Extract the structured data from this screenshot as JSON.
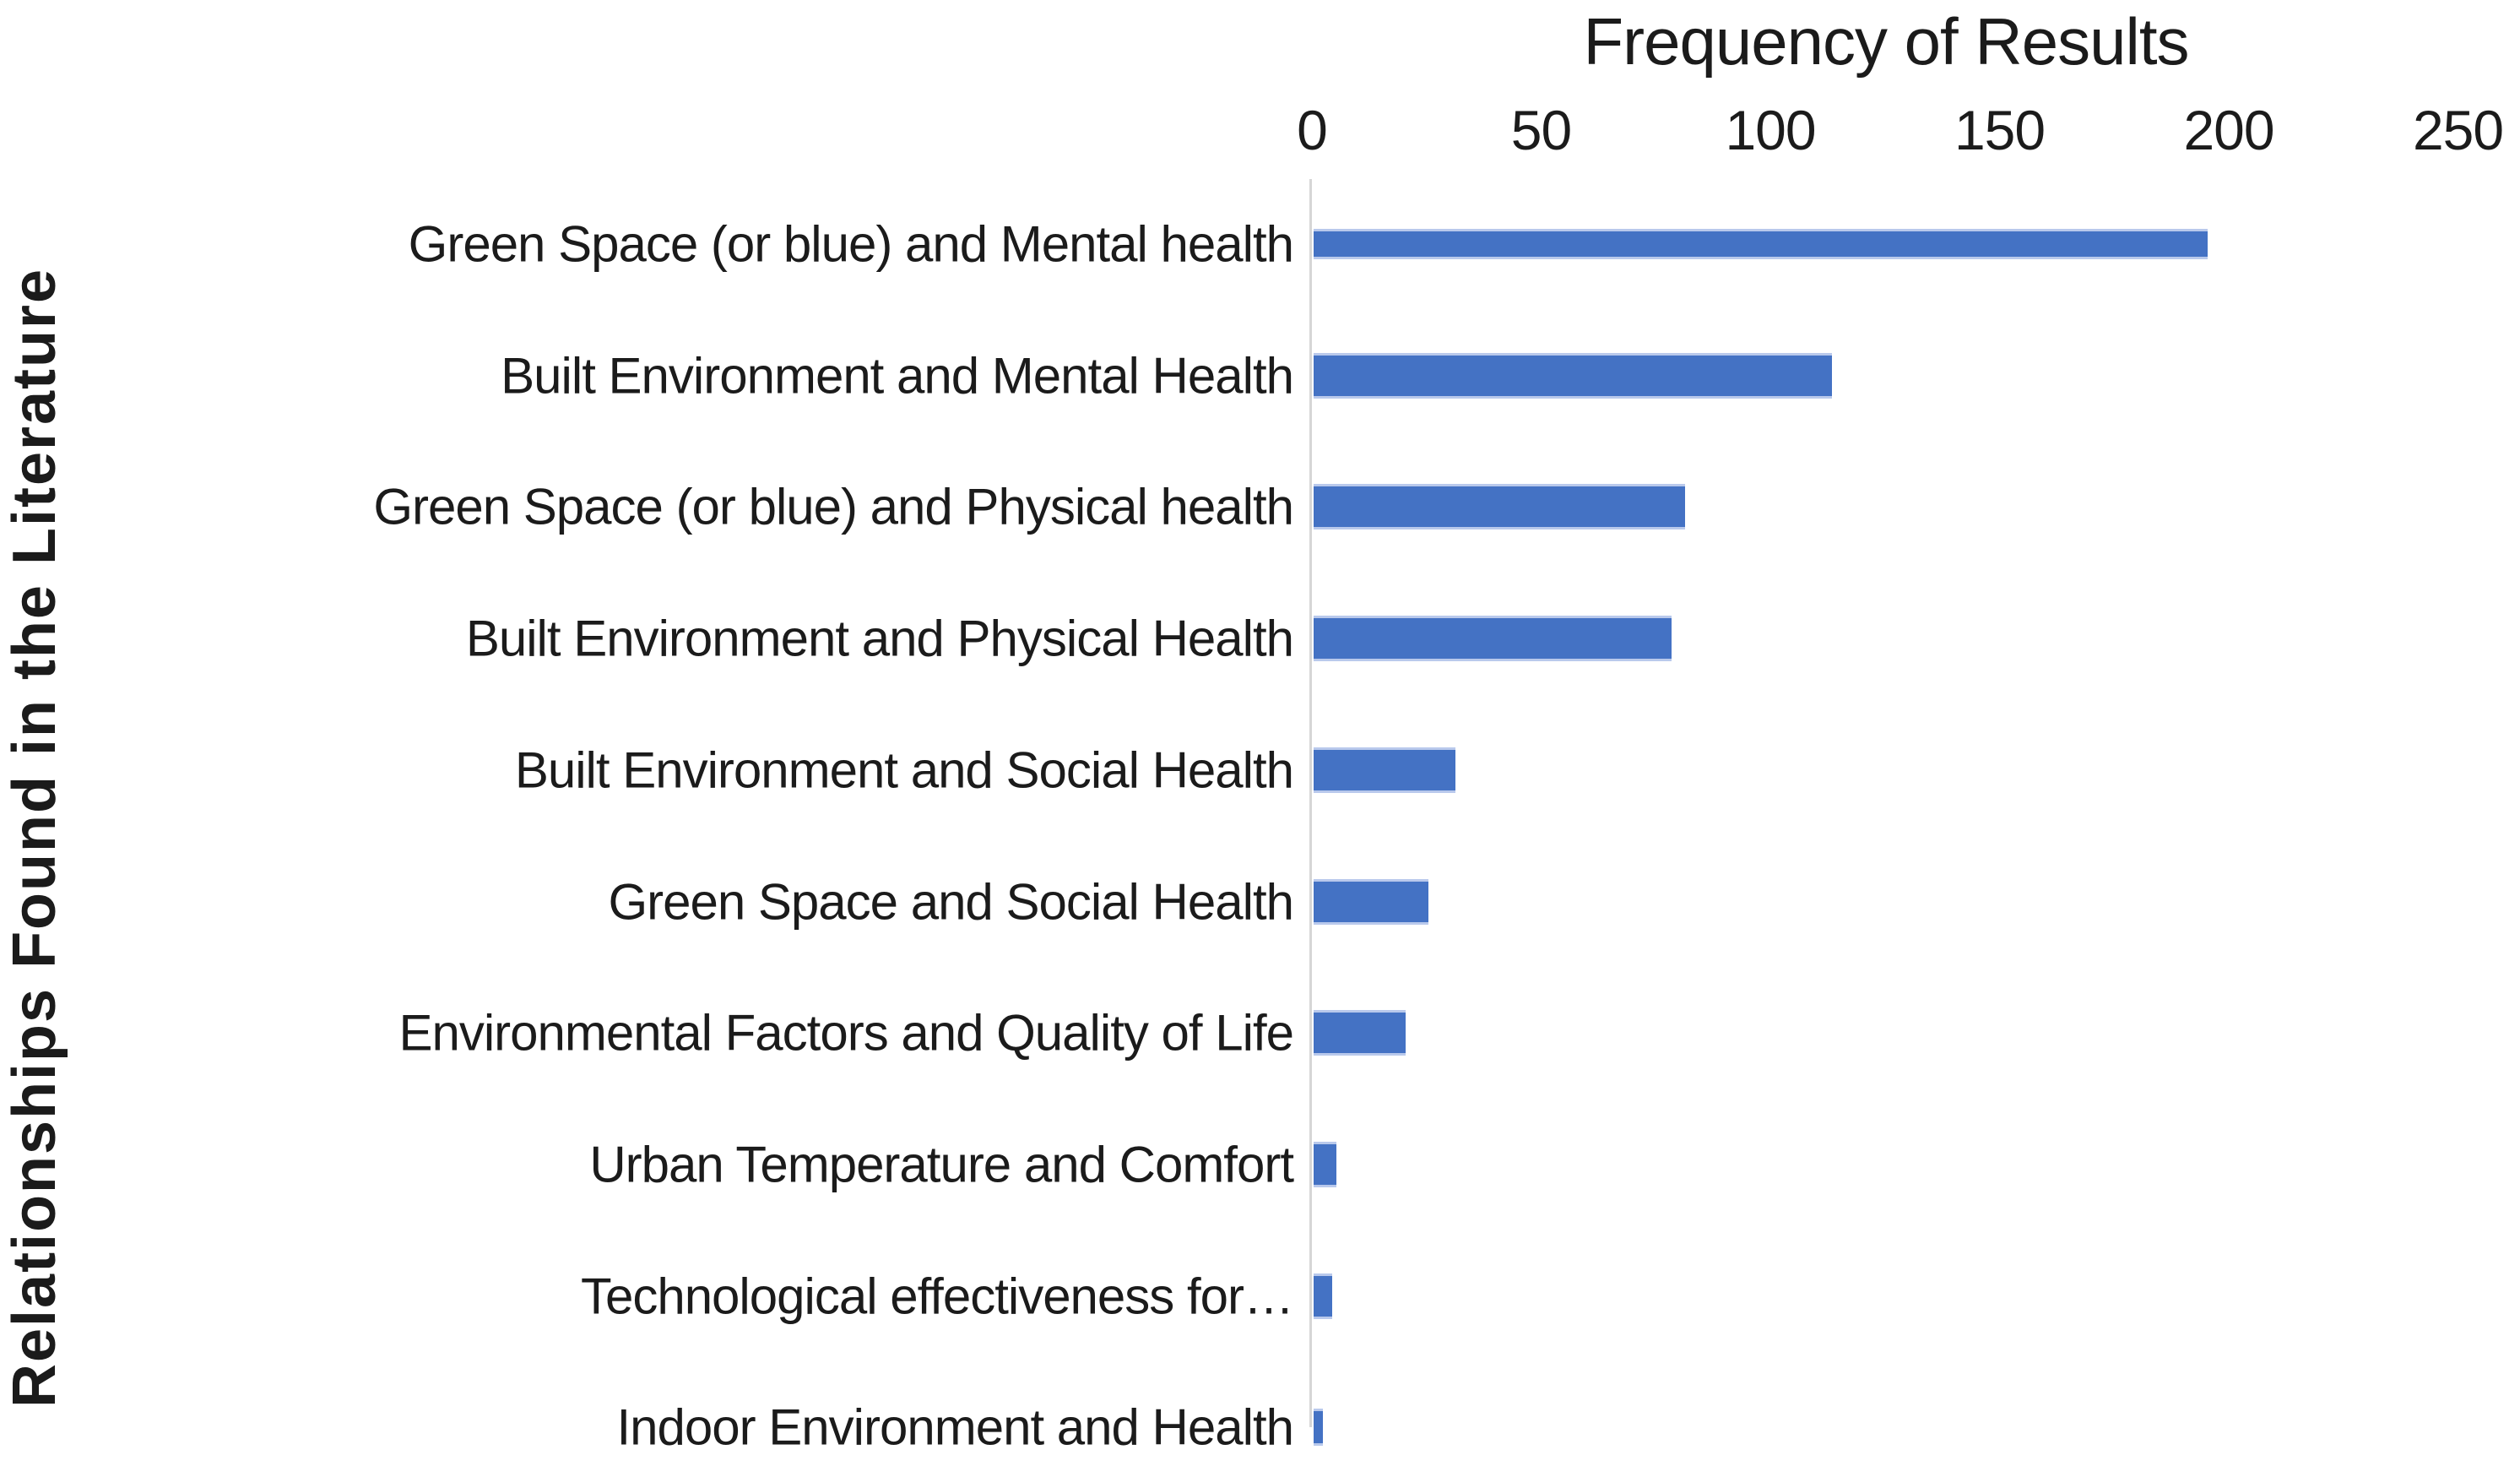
{
  "chart_data": {
    "type": "bar",
    "orientation": "horizontal",
    "title": "Frequency of Results",
    "xlabel": "",
    "ylabel": "Relationships Found in the Literature",
    "categories": [
      "Green Space (or blue) and  Mental health",
      "Built Environment and Mental Health",
      "Green Space (or blue) and Physical health",
      "Built Environment and Physical Health",
      "Built Environment and  Social Health",
      "Green Space and Social Health",
      "Environmental Factors and Quality of Life",
      "Urban Temperature and Comfort",
      "Technological effectiveness for…",
      "Indoor Environment and Health"
    ],
    "values": [
      195,
      113,
      81,
      78,
      31,
      25,
      20,
      5,
      4,
      2
    ],
    "x_ticks": [
      0,
      50,
      100,
      150,
      200,
      250
    ],
    "xlim": [
      0,
      250
    ],
    "grid": false,
    "legend": false,
    "bar_color": "#4472C4",
    "axis_line_color": "#D6D6D6",
    "text_color": "#1B1B1B"
  }
}
